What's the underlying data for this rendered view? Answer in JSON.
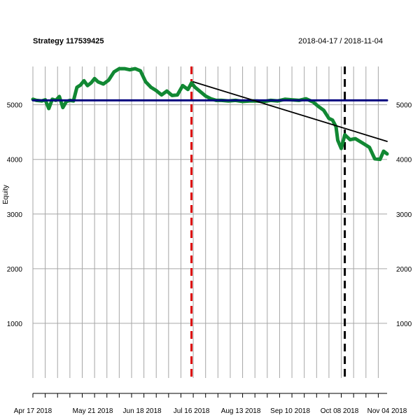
{
  "chart_data": {
    "type": "line",
    "title": "Strategy 117539425",
    "date_range": "2018-04-17 / 2018-11-04",
    "ylabel": "Equity",
    "xlabel": "",
    "x_range": [
      "2018-04-17",
      "2018-11-04"
    ],
    "ylim": [
      0,
      5700
    ],
    "y_ticks": [
      1000,
      2000,
      3000,
      4000,
      5000
    ],
    "x_ticks": [
      {
        "date": "2018-04-17",
        "label": "Apr 17 2018"
      },
      {
        "date": "2018-05-21",
        "label": "May 21 2018"
      },
      {
        "date": "2018-06-18",
        "label": "Jun 18 2018"
      },
      {
        "date": "2018-07-16",
        "label": "Jul 16 2018"
      },
      {
        "date": "2018-08-13",
        "label": "Aug 13 2018"
      },
      {
        "date": "2018-09-10",
        "label": "Sep 10 2018"
      },
      {
        "date": "2018-10-08",
        "label": "Oct 08 2018"
      },
      {
        "date": "2018-11-04",
        "label": "Nov 04 2018"
      }
    ],
    "grid": true,
    "series": [
      {
        "color": "#118833",
        "x": [
          "2018-04-17",
          "2018-04-19",
          "2018-04-22",
          "2018-04-24",
          "2018-04-26",
          "2018-04-28",
          "2018-04-30",
          "2018-05-02",
          "2018-05-04",
          "2018-05-06",
          "2018-05-08",
          "2018-05-10",
          "2018-05-12",
          "2018-05-14",
          "2018-05-16",
          "2018-05-18",
          "2018-05-20",
          "2018-05-22",
          "2018-05-24",
          "2018-05-27",
          "2018-05-30",
          "2018-06-02",
          "2018-06-05",
          "2018-06-08",
          "2018-06-11",
          "2018-06-14",
          "2018-06-17",
          "2018-06-20",
          "2018-06-23",
          "2018-06-26",
          "2018-06-29",
          "2018-07-02",
          "2018-07-05",
          "2018-07-08",
          "2018-07-11",
          "2018-07-14",
          "2018-07-16",
          "2018-07-18",
          "2018-07-21",
          "2018-07-24",
          "2018-07-27",
          "2018-07-30",
          "2018-08-02",
          "2018-08-06",
          "2018-08-10",
          "2018-08-14",
          "2018-08-18",
          "2018-08-22",
          "2018-08-26",
          "2018-08-30",
          "2018-09-03",
          "2018-09-07",
          "2018-09-11",
          "2018-09-15",
          "2018-09-19",
          "2018-09-23",
          "2018-09-26",
          "2018-09-29",
          "2018-10-02",
          "2018-10-04",
          "2018-10-06",
          "2018-10-07",
          "2018-10-09",
          "2018-10-11",
          "2018-10-14",
          "2018-10-17",
          "2018-10-21",
          "2018-10-25",
          "2018-10-28",
          "2018-10-31",
          "2018-11-02",
          "2018-11-04"
        ],
        "values": [
          5100,
          5080,
          5070,
          5090,
          4930,
          5100,
          5080,
          5150,
          4950,
          5060,
          5080,
          5070,
          5320,
          5360,
          5440,
          5350,
          5400,
          5480,
          5420,
          5380,
          5450,
          5600,
          5660,
          5660,
          5640,
          5660,
          5620,
          5420,
          5320,
          5260,
          5180,
          5250,
          5170,
          5180,
          5350,
          5280,
          5400,
          5320,
          5240,
          5160,
          5110,
          5080,
          5080,
          5070,
          5080,
          5060,
          5070,
          5070,
          5060,
          5080,
          5070,
          5100,
          5090,
          5080,
          5110,
          5050,
          4970,
          4900,
          4750,
          4720,
          4600,
          4350,
          4200,
          4450,
          4360,
          4380,
          4300,
          4220,
          4010,
          4000,
          4150,
          4100
        ]
      },
      {
        "color": "#00007f",
        "x": [
          "2018-04-17",
          "2018-11-04"
        ],
        "values": [
          5080,
          5080
        ]
      },
      {
        "color": "#000000",
        "x": [
          "2018-07-17",
          "2018-11-04"
        ],
        "values": [
          5420,
          4330
        ]
      }
    ],
    "markers": [
      {
        "date": "2018-07-16",
        "color": "#dd0000"
      },
      {
        "date": "2018-10-11",
        "color": "#000000"
      }
    ]
  }
}
